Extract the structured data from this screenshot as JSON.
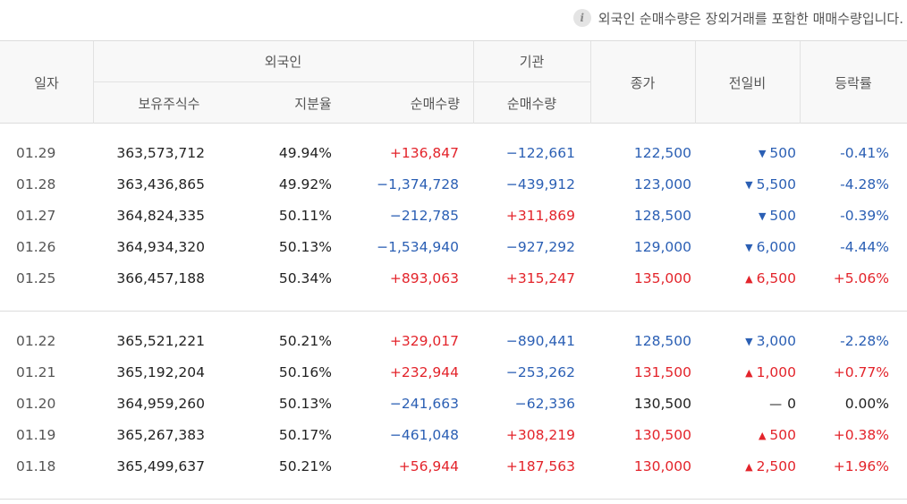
{
  "notice": {
    "icon": "info-icon",
    "text": "외국인 순매수량은 장외거래를 포함한 매매수량입니다."
  },
  "header": {
    "date": "일자",
    "foreign_group": "외국인",
    "holdings": "보유주식수",
    "ratio": "지분율",
    "foreign_net": "순매수량",
    "institution_group": "기관",
    "institution_net": "순매수량",
    "close": "종가",
    "change": "전일비",
    "rate": "등락률"
  },
  "colors": {
    "up": "#e3242b",
    "down": "#2b5fb4",
    "flat": "#222222"
  },
  "groups": [
    {
      "rows": [
        {
          "date": "01.29",
          "holdings": "363,573,712",
          "ratio": "49.94%",
          "foreign_net": "+136,847",
          "foreign_dir": "up",
          "inst_net": "−122,661",
          "inst_dir": "down",
          "close": "122,500",
          "close_dir": "down",
          "change": "500",
          "change_dir": "down",
          "rate": "-0.41%",
          "rate_dir": "down"
        },
        {
          "date": "01.28",
          "holdings": "363,436,865",
          "ratio": "49.92%",
          "foreign_net": "−1,374,728",
          "foreign_dir": "down",
          "inst_net": "−439,912",
          "inst_dir": "down",
          "close": "123,000",
          "close_dir": "down",
          "change": "5,500",
          "change_dir": "down",
          "rate": "-4.28%",
          "rate_dir": "down"
        },
        {
          "date": "01.27",
          "holdings": "364,824,335",
          "ratio": "50.11%",
          "foreign_net": "−212,785",
          "foreign_dir": "down",
          "inst_net": "+311,869",
          "inst_dir": "up",
          "close": "128,500",
          "close_dir": "down",
          "change": "500",
          "change_dir": "down",
          "rate": "-0.39%",
          "rate_dir": "down"
        },
        {
          "date": "01.26",
          "holdings": "364,934,320",
          "ratio": "50.13%",
          "foreign_net": "−1,534,940",
          "foreign_dir": "down",
          "inst_net": "−927,292",
          "inst_dir": "down",
          "close": "129,000",
          "close_dir": "down",
          "change": "6,000",
          "change_dir": "down",
          "rate": "-4.44%",
          "rate_dir": "down"
        },
        {
          "date": "01.25",
          "holdings": "366,457,188",
          "ratio": "50.34%",
          "foreign_net": "+893,063",
          "foreign_dir": "up",
          "inst_net": "+315,247",
          "inst_dir": "up",
          "close": "135,000",
          "close_dir": "up",
          "change": "6,500",
          "change_dir": "up",
          "rate": "+5.06%",
          "rate_dir": "up"
        }
      ]
    },
    {
      "rows": [
        {
          "date": "01.22",
          "holdings": "365,521,221",
          "ratio": "50.21%",
          "foreign_net": "+329,017",
          "foreign_dir": "up",
          "inst_net": "−890,441",
          "inst_dir": "down",
          "close": "128,500",
          "close_dir": "down",
          "change": "3,000",
          "change_dir": "down",
          "rate": "-2.28%",
          "rate_dir": "down"
        },
        {
          "date": "01.21",
          "holdings": "365,192,204",
          "ratio": "50.16%",
          "foreign_net": "+232,944",
          "foreign_dir": "up",
          "inst_net": "−253,262",
          "inst_dir": "down",
          "close": "131,500",
          "close_dir": "up",
          "change": "1,000",
          "change_dir": "up",
          "rate": "+0.77%",
          "rate_dir": "up"
        },
        {
          "date": "01.20",
          "holdings": "364,959,260",
          "ratio": "50.13%",
          "foreign_net": "−241,663",
          "foreign_dir": "down",
          "inst_net": "−62,336",
          "inst_dir": "down",
          "close": "130,500",
          "close_dir": "flat",
          "change": "0",
          "change_dir": "flat",
          "rate": "0.00%",
          "rate_dir": "flat"
        },
        {
          "date": "01.19",
          "holdings": "365,267,383",
          "ratio": "50.17%",
          "foreign_net": "−461,048",
          "foreign_dir": "down",
          "inst_net": "+308,219",
          "inst_dir": "up",
          "close": "130,500",
          "close_dir": "up",
          "change": "500",
          "change_dir": "up",
          "rate": "+0.38%",
          "rate_dir": "up"
        },
        {
          "date": "01.18",
          "holdings": "365,499,637",
          "ratio": "50.21%",
          "foreign_net": "+56,944",
          "foreign_dir": "up",
          "inst_net": "+187,563",
          "inst_dir": "up",
          "close": "130,000",
          "close_dir": "up",
          "change": "2,500",
          "change_dir": "up",
          "rate": "+1.96%",
          "rate_dir": "up"
        }
      ]
    }
  ]
}
